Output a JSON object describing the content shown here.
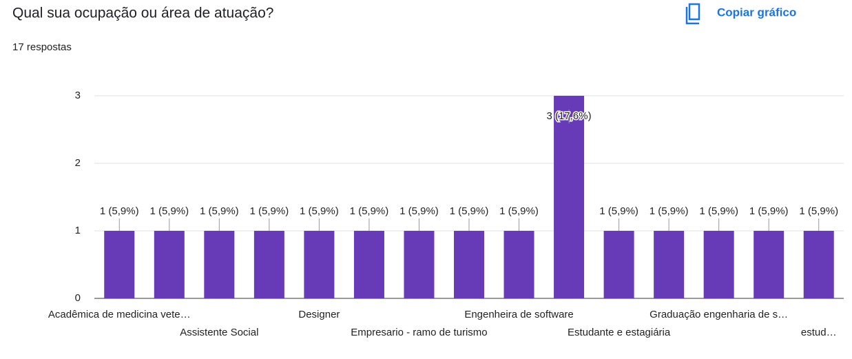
{
  "header": {
    "title": "Qual sua ocupação ou área de atuação?",
    "subtitle": "17 respostas",
    "action": "Copiar gráfico"
  },
  "chart_data": {
    "type": "bar",
    "categories": [
      "Acadêmica de medicina vete…",
      null,
      "Assistente Social",
      null,
      "Designer",
      null,
      "Empresario - ramo de turismo",
      null,
      "Engenheira de software",
      null,
      "Estudante e estagiária",
      null,
      "Graduação engenharia de s…",
      null,
      "estud…"
    ],
    "values": [
      1,
      1,
      1,
      1,
      1,
      1,
      1,
      1,
      1,
      3,
      1,
      1,
      1,
      1,
      1
    ],
    "value_labels": [
      "1 (5,9%)",
      "1 (5,9%)",
      "1 (5,9%)",
      "1 (5,9%)",
      "1 (5,9%)",
      "1 (5,9%)",
      "1 (5,9%)",
      "1 (5,9%)",
      "1 (5,9%)",
      "3 (17,6%)",
      "1 (5,9%)",
      "1 (5,9%)",
      "1 (5,9%)",
      "1 (5,9%)",
      "1 (5,9%)"
    ],
    "color": "#673ab7",
    "ylim": [
      0,
      3
    ],
    "yticks": [
      0,
      1,
      2,
      3
    ],
    "grid": true
  }
}
